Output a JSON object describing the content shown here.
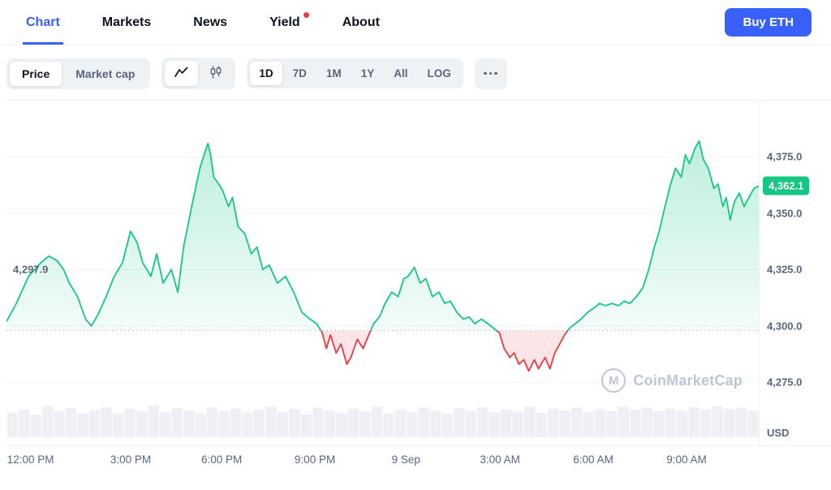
{
  "nav": {
    "tabs": [
      {
        "label": "Chart",
        "active": true
      },
      {
        "label": "Markets",
        "active": false
      },
      {
        "label": "News",
        "active": false
      },
      {
        "label": "Yield",
        "active": false,
        "has_dot": true
      },
      {
        "label": "About",
        "active": false
      }
    ],
    "buy_button": "Buy ETH"
  },
  "toolbar": {
    "metric_toggle": [
      {
        "label": "Price",
        "active": true
      },
      {
        "label": "Market cap",
        "active": false
      }
    ],
    "chart_type_toggle": [
      {
        "name": "line-chart",
        "active": true
      },
      {
        "name": "candlestick-chart",
        "active": false
      }
    ],
    "range_buttons": [
      {
        "label": "1D",
        "active": true
      },
      {
        "label": "7D",
        "active": false
      },
      {
        "label": "1M",
        "active": false
      },
      {
        "label": "1Y",
        "active": false
      },
      {
        "label": "All",
        "active": false
      },
      {
        "label": "LOG",
        "active": false
      }
    ]
  },
  "watermark": "CoinMarketCap",
  "chart_data": {
    "type": "line",
    "title": "ETH price, 1D range",
    "currency": "USD",
    "current_price": "4,362.1",
    "current_price_value": 4362.1,
    "baseline_label": "4,297.9",
    "baseline_value": 4297.9,
    "baseline_label_y_frac": 0.49,
    "ylim": [
      4247,
      4400
    ],
    "grid": true,
    "legend": "none",
    "y_ticks": [
      {
        "value": 4375,
        "label": "4,375.0"
      },
      {
        "value": 4350,
        "label": "4,350.0"
      },
      {
        "value": 4325,
        "label": "4,325.0"
      },
      {
        "value": 4300,
        "label": "4,300.0"
      },
      {
        "value": 4275,
        "label": "4,275.0"
      }
    ],
    "x_ticks": [
      {
        "label": "12:00 PM",
        "x": 0.032
      },
      {
        "label": "3:00 PM",
        "x": 0.165
      },
      {
        "label": "6:00 PM",
        "x": 0.286
      },
      {
        "label": "9:00 PM",
        "x": 0.41
      },
      {
        "label": "9 Sep",
        "x": 0.531
      },
      {
        "label": "3:00 AM",
        "x": 0.656
      },
      {
        "label": "6:00 AM",
        "x": 0.78
      },
      {
        "label": "9:00 AM",
        "x": 0.904
      }
    ],
    "colors": {
      "up": "#16c784",
      "down": "#ea3943",
      "accent": "#3861fb",
      "volume": "#eef0f3"
    },
    "points": [
      [
        8,
        4302
      ],
      [
        20,
        4310
      ],
      [
        35,
        4322
      ],
      [
        50,
        4328
      ],
      [
        60,
        4331
      ],
      [
        70,
        4329
      ],
      [
        78,
        4325
      ],
      [
        85,
        4319
      ],
      [
        95,
        4313
      ],
      [
        105,
        4303
      ],
      [
        112,
        4300
      ],
      [
        120,
        4305
      ],
      [
        130,
        4313
      ],
      [
        140,
        4322
      ],
      [
        150,
        4328
      ],
      [
        160,
        4342
      ],
      [
        168,
        4337
      ],
      [
        175,
        4328
      ],
      [
        185,
        4322
      ],
      [
        192,
        4332
      ],
      [
        200,
        4319
      ],
      [
        210,
        4325
      ],
      [
        218,
        4315
      ],
      [
        225,
        4335
      ],
      [
        235,
        4353
      ],
      [
        245,
        4370
      ],
      [
        252,
        4378
      ],
      [
        255,
        4381
      ],
      [
        258,
        4376
      ],
      [
        262,
        4366
      ],
      [
        268,
        4363
      ],
      [
        273,
        4360
      ],
      [
        280,
        4353
      ],
      [
        285,
        4357
      ],
      [
        292,
        4344
      ],
      [
        300,
        4341
      ],
      [
        308,
        4332
      ],
      [
        315,
        4335
      ],
      [
        322,
        4325
      ],
      [
        330,
        4327
      ],
      [
        340,
        4319
      ],
      [
        350,
        4322
      ],
      [
        360,
        4315
      ],
      [
        370,
        4306
      ],
      [
        380,
        4303
      ],
      [
        388,
        4301
      ],
      [
        395,
        4297
      ],
      [
        400,
        4290
      ],
      [
        405,
        4296
      ],
      [
        412,
        4288
      ],
      [
        418,
        4292
      ],
      [
        425,
        4283
      ],
      [
        430,
        4286
      ],
      [
        438,
        4294
      ],
      [
        445,
        4290
      ],
      [
        452,
        4296
      ],
      [
        458,
        4301
      ],
      [
        465,
        4304
      ],
      [
        472,
        4310
      ],
      [
        480,
        4315
      ],
      [
        488,
        4313
      ],
      [
        495,
        4321
      ],
      [
        500,
        4322
      ],
      [
        508,
        4326
      ],
      [
        515,
        4319
      ],
      [
        522,
        4321
      ],
      [
        530,
        4313
      ],
      [
        538,
        4315
      ],
      [
        545,
        4310
      ],
      [
        552,
        4311
      ],
      [
        560,
        4306
      ],
      [
        568,
        4303
      ],
      [
        575,
        4304
      ],
      [
        582,
        4301
      ],
      [
        590,
        4303
      ],
      [
        598,
        4301
      ],
      [
        605,
        4299
      ],
      [
        612,
        4297
      ],
      [
        618,
        4290
      ],
      [
        625,
        4286
      ],
      [
        630,
        4288
      ],
      [
        636,
        4283
      ],
      [
        642,
        4285
      ],
      [
        648,
        4280
      ],
      [
        655,
        4285
      ],
      [
        660,
        4281
      ],
      [
        668,
        4286
      ],
      [
        674,
        4281
      ],
      [
        680,
        4288
      ],
      [
        686,
        4292
      ],
      [
        692,
        4296
      ],
      [
        698,
        4299
      ],
      [
        705,
        4301
      ],
      [
        712,
        4303
      ],
      [
        720,
        4306
      ],
      [
        728,
        4308
      ],
      [
        735,
        4310
      ],
      [
        742,
        4309
      ],
      [
        750,
        4310
      ],
      [
        758,
        4309
      ],
      [
        765,
        4311
      ],
      [
        772,
        4310
      ],
      [
        780,
        4313
      ],
      [
        788,
        4317
      ],
      [
        795,
        4325
      ],
      [
        802,
        4335
      ],
      [
        808,
        4342
      ],
      [
        815,
        4353
      ],
      [
        822,
        4363
      ],
      [
        828,
        4370
      ],
      [
        835,
        4366
      ],
      [
        840,
        4376
      ],
      [
        845,
        4372
      ],
      [
        852,
        4379
      ],
      [
        857,
        4382
      ],
      [
        862,
        4374
      ],
      [
        868,
        4370
      ],
      [
        875,
        4361
      ],
      [
        880,
        4363
      ],
      [
        886,
        4353
      ],
      [
        890,
        4357
      ],
      [
        895,
        4347
      ],
      [
        900,
        4355
      ],
      [
        906,
        4359
      ],
      [
        912,
        4353
      ],
      [
        918,
        4357
      ],
      [
        924,
        4361
      ],
      [
        930,
        4362.1
      ]
    ],
    "volume": [
      0.52,
      0.6,
      0.48,
      0.66,
      0.55,
      0.62,
      0.5,
      0.58,
      0.64,
      0.51,
      0.6,
      0.55,
      0.68,
      0.53,
      0.62,
      0.57,
      0.5,
      0.64,
      0.56,
      0.61,
      0.52,
      0.59,
      0.65,
      0.54,
      0.6,
      0.49,
      0.63,
      0.57,
      0.52,
      0.61,
      0.55,
      0.65,
      0.51,
      0.59,
      0.54,
      0.63,
      0.57,
      0.5,
      0.62,
      0.56,
      0.64,
      0.53,
      0.59,
      0.55,
      0.65,
      0.52,
      0.61,
      0.57,
      0.63,
      0.54,
      0.6,
      0.56,
      0.65,
      0.58,
      0.63,
      0.55,
      0.61,
      0.57,
      0.64,
      0.59,
      0.66,
      0.6,
      0.63,
      0.57
    ]
  }
}
